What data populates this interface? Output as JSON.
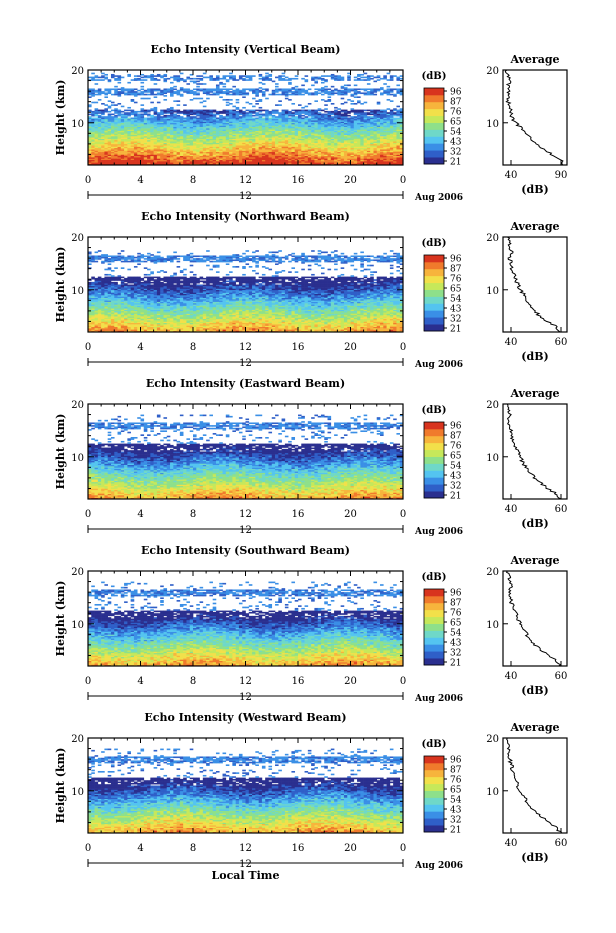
{
  "figure": {
    "xlabel": "Local Time",
    "ylabel": "Height (km)",
    "date_label": "Aug 2006",
    "hour_label": "12",
    "x_ticks": [
      "0",
      "4",
      "8",
      "12",
      "16",
      "20",
      "0"
    ],
    "y_ticks": [
      "20",
      "10"
    ],
    "colorbar_unit": "(dB)",
    "avg_title": "Average",
    "avg_xlabel": "(dB)"
  },
  "colors": [
    "#2a2f8f",
    "#2f5fc8",
    "#3a8fe6",
    "#54c4f0",
    "#6fd8c8",
    "#8ee08a",
    "#c6e85a",
    "#f2e04a",
    "#f7b43c",
    "#f07a2c",
    "#d8341e"
  ],
  "chart_data": [
    {
      "type": "heatmap",
      "title": "Echo Intensity (Vertical Beam)",
      "colorbar_ticks": [
        "96",
        "87",
        "76",
        "65",
        "54",
        "43",
        "32",
        "21"
      ],
      "x": [
        0,
        24
      ],
      "ylim": [
        2,
        20
      ],
      "avg_x_ticks": [
        "40",
        "90"
      ],
      "avg_xlim": [
        40,
        90
      ],
      "profile": {
        "height_km": [
          2,
          3,
          4,
          5,
          6,
          7,
          8,
          9,
          10,
          11,
          12,
          13,
          14,
          15,
          16,
          17,
          18,
          19,
          20
        ],
        "db": [
          88,
          86,
          78,
          72,
          66,
          62,
          58,
          54,
          50,
          47,
          46,
          45,
          44,
          44,
          45,
          44,
          45,
          44,
          43
        ]
      },
      "top_echo_km": 19.5
    },
    {
      "type": "heatmap",
      "title": "Echo Intensity (Northward Beam)",
      "colorbar_ticks": [
        "96",
        "87",
        "76",
        "65",
        "54",
        "43",
        "32",
        "21"
      ],
      "x": [
        0,
        24
      ],
      "ylim": [
        2,
        20
      ],
      "avg_x_ticks": [
        "40",
        "60"
      ],
      "avg_xlim": [
        35,
        65
      ],
      "profile": {
        "height_km": [
          2,
          3,
          4,
          5,
          6,
          7,
          8,
          9,
          10,
          11,
          12,
          13,
          14,
          15,
          16,
          17,
          18,
          19,
          20
        ],
        "db": [
          62,
          60,
          56,
          52,
          50,
          48,
          46,
          45,
          43,
          42,
          41,
          40,
          39,
          39,
          38,
          39,
          38,
          38,
          37
        ]
      },
      "top_echo_km": 17.5
    },
    {
      "type": "heatmap",
      "title": "Echo Intensity (Eastward Beam)",
      "colorbar_ticks": [
        "96",
        "87",
        "76",
        "65",
        "54",
        "43",
        "32",
        "21"
      ],
      "x": [
        0,
        24
      ],
      "ylim": [
        2,
        20
      ],
      "avg_x_ticks": [
        "40",
        "60"
      ],
      "avg_xlim": [
        35,
        65
      ],
      "profile": {
        "height_km": [
          2,
          3,
          4,
          5,
          6,
          7,
          8,
          9,
          10,
          11,
          12,
          13,
          14,
          15,
          16,
          17,
          18,
          19,
          20
        ],
        "db": [
          62,
          60,
          56,
          53,
          50,
          48,
          46,
          44,
          43,
          42,
          41,
          40,
          39,
          39,
          38,
          38,
          38,
          37,
          37
        ]
      },
      "top_echo_km": 18
    },
    {
      "type": "heatmap",
      "title": "Echo Intensity (Southward Beam)",
      "colorbar_ticks": [
        "96",
        "87",
        "76",
        "65",
        "54",
        "43",
        "32",
        "21"
      ],
      "x": [
        0,
        24
      ],
      "ylim": [
        2,
        20
      ],
      "avg_x_ticks": [
        "40",
        "60"
      ],
      "avg_xlim": [
        35,
        65
      ],
      "profile": {
        "height_km": [
          2,
          3,
          4,
          5,
          6,
          7,
          8,
          9,
          10,
          11,
          12,
          13,
          14,
          15,
          16,
          17,
          18,
          19,
          20
        ],
        "db": [
          62,
          60,
          57,
          53,
          50,
          48,
          46,
          45,
          43,
          42,
          41,
          40,
          39,
          39,
          38,
          39,
          38,
          38,
          37
        ]
      },
      "top_echo_km": 18
    },
    {
      "type": "heatmap",
      "title": "Echo Intensity (Westward Beam)",
      "colorbar_ticks": [
        "96",
        "87",
        "76",
        "65",
        "54",
        "43",
        "32",
        "21"
      ],
      "x": [
        0,
        24
      ],
      "ylim": [
        2,
        20
      ],
      "avg_x_ticks": [
        "40",
        "60"
      ],
      "avg_xlim": [
        35,
        65
      ],
      "profile": {
        "height_km": [
          2,
          3,
          4,
          5,
          6,
          7,
          8,
          9,
          10,
          11,
          12,
          13,
          14,
          15,
          16,
          17,
          18,
          19,
          20
        ],
        "db": [
          62,
          60,
          57,
          53,
          50,
          48,
          46,
          45,
          43,
          42,
          41,
          40,
          39,
          39,
          38,
          38,
          38,
          38,
          37
        ]
      },
      "top_echo_km": 18
    }
  ]
}
